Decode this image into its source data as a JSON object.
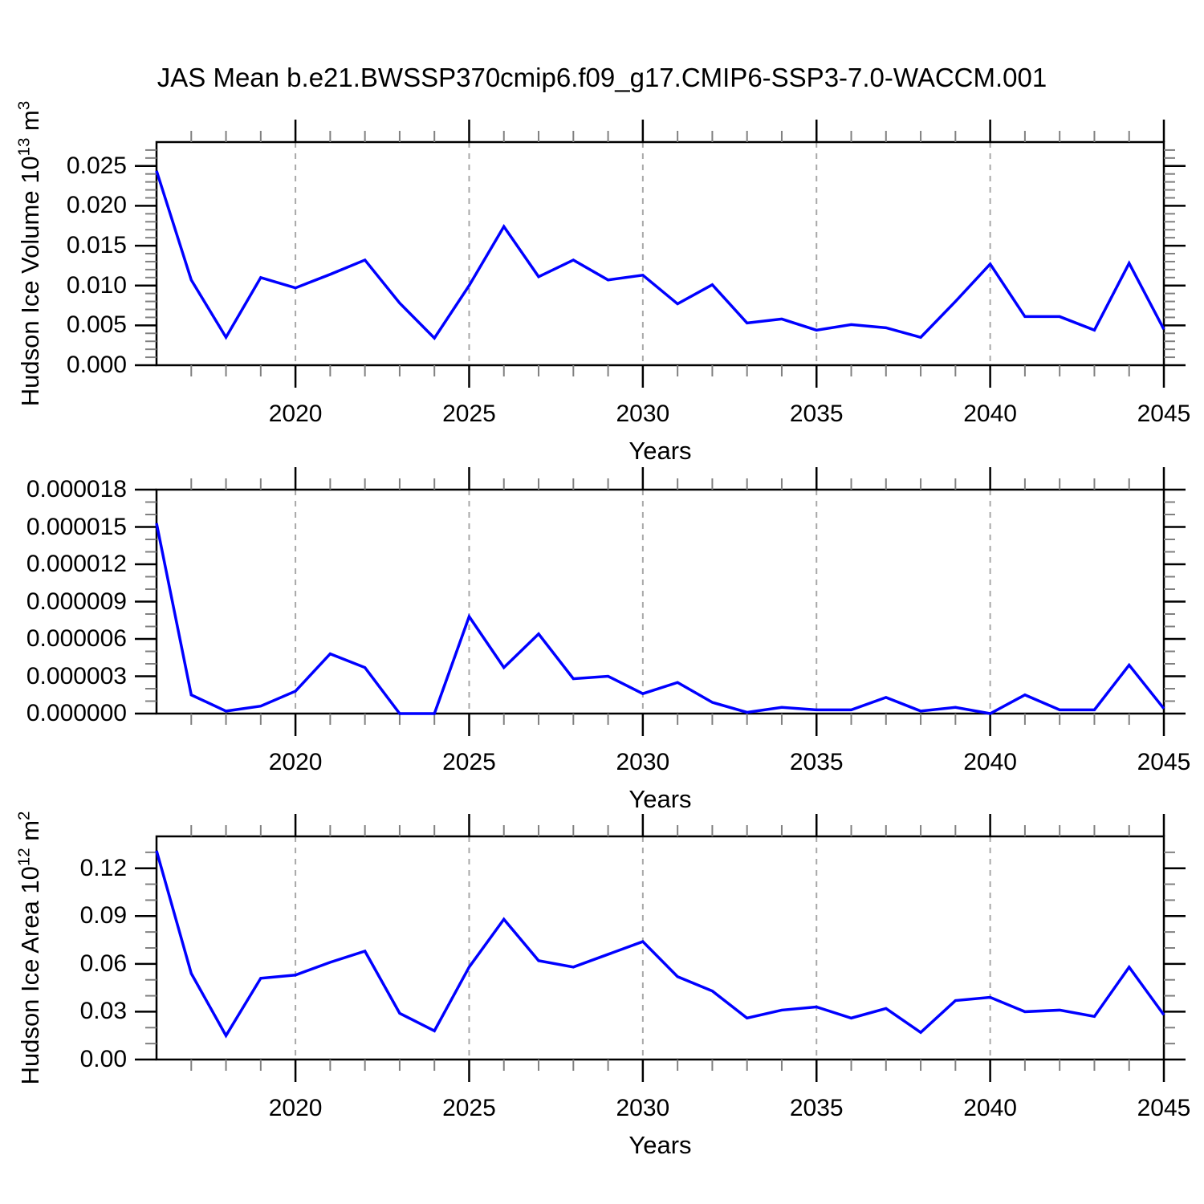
{
  "title": "JAS Mean b.e21.BWSSP370cmip6.f09_g17.CMIP6-SSP3-7.0-WACCM.001",
  "colors": {
    "line": "#0000ff",
    "grid": "#a8a8a8",
    "axis": "#000000",
    "minor_tick": "#808080",
    "text": "#000000",
    "background": "#ffffff"
  },
  "chart_data": [
    {
      "type": "line",
      "panel": "hudson-ice-volume",
      "ylabel_segments": [
        "Hudson Ice Volume 10",
        "^13",
        " m",
        "^3"
      ],
      "xlabel": "Years",
      "xlim": [
        2016,
        2045
      ],
      "ylim": [
        0,
        0.028
      ],
      "x": [
        2016,
        2017,
        2018,
        2019,
        2020,
        2021,
        2022,
        2023,
        2024,
        2025,
        2026,
        2027,
        2028,
        2029,
        2030,
        2031,
        2032,
        2033,
        2034,
        2035,
        2036,
        2037,
        2038,
        2039,
        2040,
        2041,
        2042,
        2043,
        2044,
        2045
      ],
      "values": [
        0.0244,
        0.0107,
        0.0035,
        0.011,
        0.0097,
        0.0114,
        0.0132,
        0.0078,
        0.0034,
        0.01,
        0.0174,
        0.0111,
        0.0132,
        0.0107,
        0.0113,
        0.0077,
        0.0101,
        0.0053,
        0.0058,
        0.0044,
        0.0051,
        0.0047,
        0.0035,
        0.008,
        0.0127,
        0.0061,
        0.0061,
        0.0044,
        0.0128,
        0.0045
      ],
      "yticks": [
        {
          "v": 0.0,
          "label": "0.000"
        },
        {
          "v": 0.005,
          "label": "0.005"
        },
        {
          "v": 0.01,
          "label": "0.010"
        },
        {
          "v": 0.015,
          "label": "0.015"
        },
        {
          "v": 0.02,
          "label": "0.020"
        },
        {
          "v": 0.025,
          "label": "0.025"
        }
      ],
      "yminor_step": 0.001,
      "xticks": [
        {
          "v": 2020,
          "label": "2020"
        },
        {
          "v": 2025,
          "label": "2025"
        },
        {
          "v": 2030,
          "label": "2030"
        },
        {
          "v": 2035,
          "label": "2035"
        },
        {
          "v": 2040,
          "label": "2040"
        },
        {
          "v": 2045,
          "label": "2045"
        }
      ],
      "grid_x": [
        2020,
        2025,
        2030,
        2035,
        2040
      ]
    },
    {
      "type": "line",
      "panel": "hudson-ice-middle",
      "ylabel_segments": [],
      "xlabel": "Years",
      "xlim": [
        2016,
        2045
      ],
      "ylim": [
        0,
        1.8e-05
      ],
      "x": [
        2016,
        2017,
        2018,
        2019,
        2020,
        2021,
        2022,
        2023,
        2024,
        2025,
        2026,
        2027,
        2028,
        2029,
        2030,
        2031,
        2032,
        2033,
        2034,
        2035,
        2036,
        2037,
        2038,
        2039,
        2040,
        2041,
        2042,
        2043,
        2044,
        2045
      ],
      "values": [
        1.53e-05,
        1.5e-06,
        2e-07,
        6e-07,
        1.8e-06,
        4.8e-06,
        3.7e-06,
        0.0,
        0.0,
        7.8e-06,
        3.7e-06,
        6.4e-06,
        2.8e-06,
        3e-06,
        1.6e-06,
        2.5e-06,
        9e-07,
        1e-07,
        5e-07,
        3e-07,
        3e-07,
        1.3e-06,
        2e-07,
        5e-07,
        0.0,
        1.5e-06,
        3e-07,
        3e-07,
        3.9e-06,
        4e-07
      ],
      "yticks": [
        {
          "v": 0.0,
          "label": "0.000000"
        },
        {
          "v": 3e-06,
          "label": "0.000003"
        },
        {
          "v": 6e-06,
          "label": "0.000006"
        },
        {
          "v": 9e-06,
          "label": "0.000009"
        },
        {
          "v": 1.2e-05,
          "label": "0.000012"
        },
        {
          "v": 1.5e-05,
          "label": "0.000015"
        },
        {
          "v": 1.8e-05,
          "label": "0.000018"
        }
      ],
      "yminor_step": 1e-06,
      "xticks": [
        {
          "v": 2020,
          "label": "2020"
        },
        {
          "v": 2025,
          "label": "2025"
        },
        {
          "v": 2030,
          "label": "2030"
        },
        {
          "v": 2035,
          "label": "2035"
        },
        {
          "v": 2040,
          "label": "2040"
        },
        {
          "v": 2045,
          "label": "2045"
        }
      ],
      "grid_x": [
        2020,
        2025,
        2030,
        2035,
        2040
      ]
    },
    {
      "type": "line",
      "panel": "hudson-ice-area",
      "ylabel_segments": [
        "Hudson Ice Area 10",
        "^12",
        " m",
        "^2"
      ],
      "xlabel": "Years",
      "xlim": [
        2016,
        2045
      ],
      "ylim": [
        0,
        0.14
      ],
      "x": [
        2016,
        2017,
        2018,
        2019,
        2020,
        2021,
        2022,
        2023,
        2024,
        2025,
        2026,
        2027,
        2028,
        2029,
        2030,
        2031,
        2032,
        2033,
        2034,
        2035,
        2036,
        2037,
        2038,
        2039,
        2040,
        2041,
        2042,
        2043,
        2044,
        2045
      ],
      "values": [
        0.131,
        0.054,
        0.015,
        0.051,
        0.053,
        0.061,
        0.068,
        0.029,
        0.018,
        0.058,
        0.088,
        0.062,
        0.058,
        0.066,
        0.074,
        0.052,
        0.043,
        0.026,
        0.031,
        0.033,
        0.026,
        0.032,
        0.017,
        0.037,
        0.039,
        0.03,
        0.031,
        0.027,
        0.058,
        0.028
      ],
      "yticks": [
        {
          "v": 0.0,
          "label": "0.00"
        },
        {
          "v": 0.03,
          "label": "0.03"
        },
        {
          "v": 0.06,
          "label": "0.06"
        },
        {
          "v": 0.09,
          "label": "0.09"
        },
        {
          "v": 0.12,
          "label": "0.12"
        }
      ],
      "yminor_step": 0.01,
      "xticks": [
        {
          "v": 2020,
          "label": "2020"
        },
        {
          "v": 2025,
          "label": "2025"
        },
        {
          "v": 2030,
          "label": "2030"
        },
        {
          "v": 2035,
          "label": "2035"
        },
        {
          "v": 2040,
          "label": "2040"
        },
        {
          "v": 2045,
          "label": "2045"
        }
      ],
      "grid_x": [
        2020,
        2025,
        2030,
        2035,
        2040
      ]
    }
  ]
}
